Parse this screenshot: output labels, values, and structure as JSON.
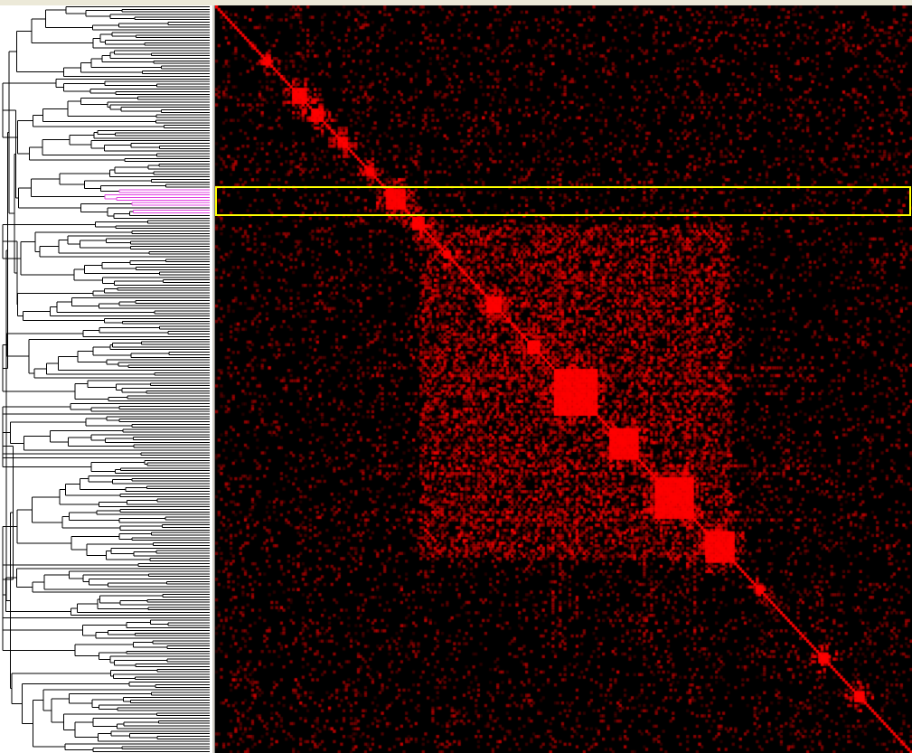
{
  "window": {
    "background": "#ece9d8"
  },
  "dendrogram": {
    "line_color": "#000000",
    "highlight_color": "#e040e0",
    "leaf_count": 290,
    "highlighted_leaves": [
      70,
      80
    ]
  },
  "heatmap": {
    "background": "#000000",
    "cell_color": "#ff0000",
    "matrix_size": 290,
    "diagonal_blocks": [
      {
        "start": 20,
        "size": 3
      },
      {
        "start": 32,
        "size": 6
      },
      {
        "start": 40,
        "size": 5
      },
      {
        "start": 51,
        "size": 4
      },
      {
        "start": 63,
        "size": 3
      },
      {
        "start": 71,
        "size": 8
      },
      {
        "start": 82,
        "size": 5
      },
      {
        "start": 95,
        "size": 3
      },
      {
        "start": 113,
        "size": 6
      },
      {
        "start": 130,
        "size": 5
      },
      {
        "start": 141,
        "size": 18
      },
      {
        "start": 164,
        "size": 12
      },
      {
        "start": 183,
        "size": 16
      },
      {
        "start": 204,
        "size": 12
      },
      {
        "start": 225,
        "size": 3
      },
      {
        "start": 251,
        "size": 4
      },
      {
        "start": 266,
        "size": 4
      }
    ]
  },
  "selection": {
    "color": "#ffff00",
    "row_start": 71,
    "row_end": 81
  }
}
